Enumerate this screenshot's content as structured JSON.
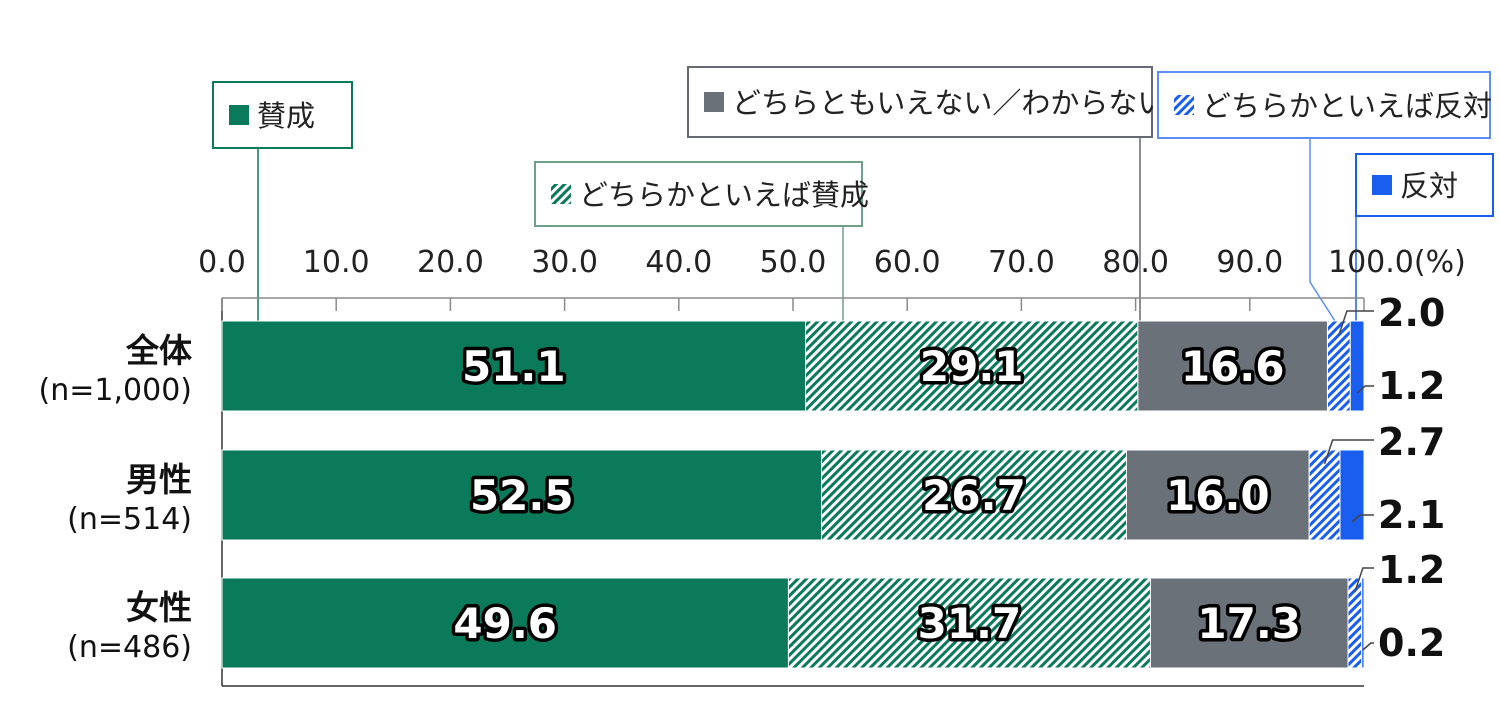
{
  "chart_data": {
    "type": "bar",
    "orientation": "horizontal",
    "stacked": true,
    "xlim": [
      0,
      100
    ],
    "x_ticks": [
      "0.0",
      "10.0",
      "20.0",
      "30.0",
      "40.0",
      "50.0",
      "60.0",
      "70.0",
      "80.0",
      "90.0",
      "100.0(%)"
    ],
    "categories": [
      {
        "name": "全体",
        "n": "(n=1,000)"
      },
      {
        "name": "男性",
        "n": "(n=514)"
      },
      {
        "name": "女性",
        "n": "(n=486)"
      }
    ],
    "series": [
      {
        "name": "賛成",
        "color": "#0a7a5a",
        "pattern": "solid",
        "values": [
          51.1,
          52.5,
          49.6
        ],
        "labels": [
          "51.1",
          "52.5",
          "49.6"
        ]
      },
      {
        "name": "どちらかといえば賛成",
        "color": "#0a7a5a",
        "pattern": "hatch",
        "values": [
          29.1,
          26.7,
          31.7
        ],
        "labels": [
          "29.1",
          "26.7",
          "31.7"
        ]
      },
      {
        "name": "どちらともいえない／わからない",
        "color": "#6b7178",
        "pattern": "solid",
        "values": [
          16.6,
          16.0,
          17.3
        ],
        "labels": [
          "16.6",
          "16.0",
          "17.3"
        ]
      },
      {
        "name": "どちらかといえば反対",
        "color": "#1a5ef0",
        "pattern": "hatch",
        "values": [
          2.0,
          2.7,
          1.2
        ],
        "labels": [
          "2.0",
          "2.7",
          "1.2"
        ]
      },
      {
        "name": "反対",
        "color": "#1a5ef0",
        "pattern": "solid",
        "values": [
          1.2,
          2.1,
          0.2
        ],
        "labels": [
          "1.2",
          "2.1",
          "0.2"
        ]
      }
    ],
    "legend_placement": "callouts-above"
  }
}
